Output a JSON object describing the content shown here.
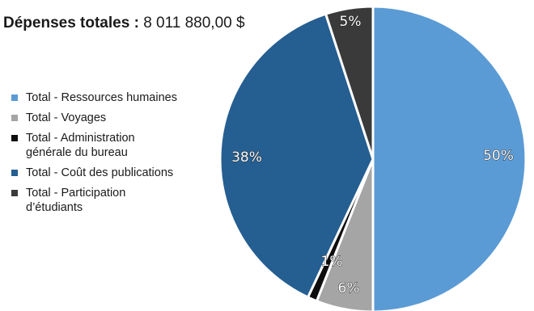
{
  "title": {
    "bold": "Dépenses totales :",
    "value": "8 011 880,00 $"
  },
  "chart_data": {
    "type": "pie",
    "title": "Dépenses totales : 8 011 880,00 $",
    "legend_position": "left",
    "slices": [
      {
        "name": "Total - Ressources humaines",
        "value": 50,
        "label": "50%",
        "color": "#5b9bd5"
      },
      {
        "name": "Total - Voyages",
        "value": 6,
        "label": "6%",
        "color": "#a5a5a5"
      },
      {
        "name": "Total - Administration générale du bureau",
        "value": 1,
        "label": "1%",
        "color": "#0d0d0d"
      },
      {
        "name": "Total - Coût des publications",
        "value": 38,
        "label": "38%",
        "color": "#255e91"
      },
      {
        "name": "Total - Participation d’étudiants",
        "value": 5,
        "label": "5%",
        "color": "#3a3a3a"
      }
    ]
  },
  "legend": [
    {
      "label": "Total - Ressources humaines",
      "color": "#5b9bd5"
    },
    {
      "label": "Total - Voyages",
      "color": "#a5a5a5"
    },
    {
      "label": "Total - Administration\ngénérale du bureau",
      "color": "#0d0d0d"
    },
    {
      "label": "Total - Coût des publications",
      "color": "#255e91"
    },
    {
      "label": "Total - Participation\nd’étudiants",
      "color": "#3a3a3a"
    }
  ]
}
